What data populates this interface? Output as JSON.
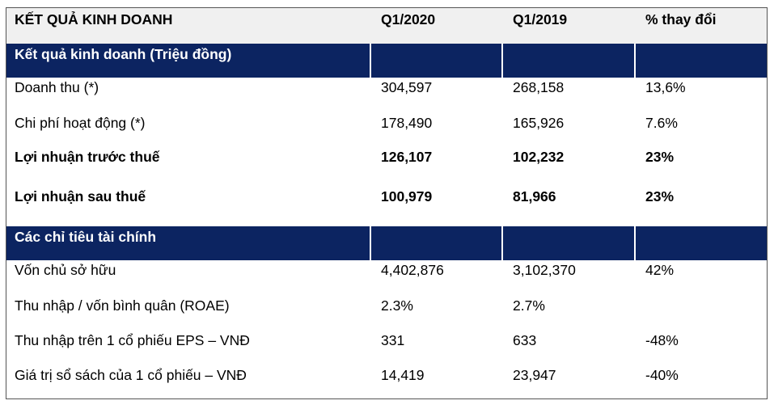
{
  "header": {
    "col0": "KẾT QUẢ KINH DOANH",
    "col1": "Q1/2020",
    "col2": "Q1/2019",
    "col3": "% thay đổi"
  },
  "section1": {
    "title": "Kết quả kinh doanh (Triệu đồng)"
  },
  "rows1": [
    {
      "label": "Doanh thu (*)",
      "q1_2020": "304,597",
      "q1_2019": "268,158",
      "change": "13,6%"
    },
    {
      "label": "Chi phí hoạt động (*)",
      "q1_2020": "178,490",
      "q1_2019": "165,926",
      "change": "7.6%"
    },
    {
      "label": "Lợi nhuận trước thuế",
      "q1_2020": "126,107",
      "q1_2019": "102,232",
      "change": "23%"
    },
    {
      "label": "Lợi nhuận sau thuế",
      "q1_2020": "100,979",
      "q1_2019": "81,966",
      "change": "23%"
    }
  ],
  "section2": {
    "title": "Các chỉ tiêu tài chính"
  },
  "rows2": [
    {
      "label": "Vốn chủ sở hữu",
      "q1_2020": "4,402,876",
      "q1_2019": "3,102,370",
      "change": "42%"
    },
    {
      "label": "Thu nhập / vốn bình quân (ROAE)",
      "q1_2020": "2.3%",
      "q1_2019": "2.7%",
      "change": ""
    },
    {
      "label": "Thu nhập trên 1 cổ phiếu EPS – VNĐ",
      "q1_2020": "331",
      "q1_2019": "633",
      "change": "-48%"
    },
    {
      "label": "Giá trị sổ sách của 1 cổ phiếu – VNĐ",
      "q1_2020": "14,419",
      "q1_2019": "23,947",
      "change": "-40%"
    }
  ]
}
